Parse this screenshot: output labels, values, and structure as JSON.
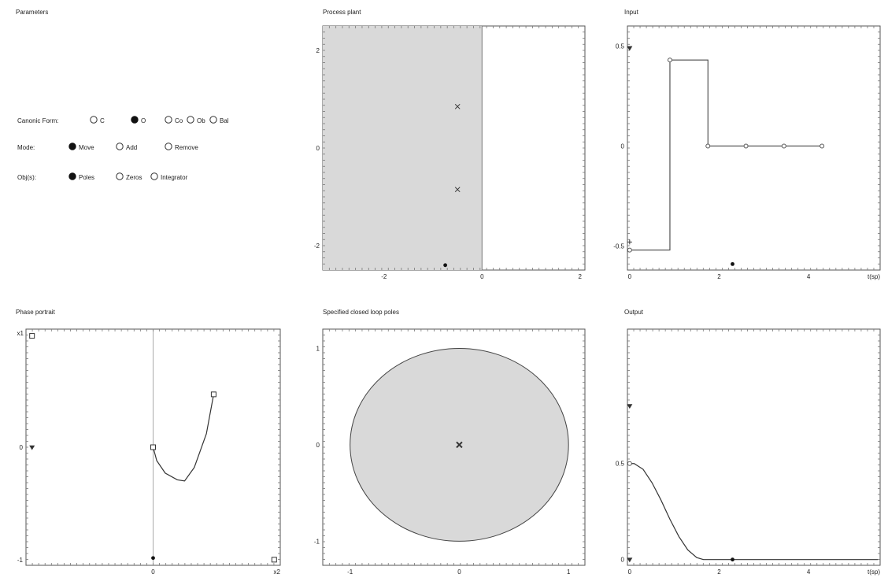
{
  "parameters": {
    "title": "Parameters",
    "canonic_form": {
      "label": "Canonic Form:",
      "options": [
        "C",
        "O",
        "Co",
        "Ob",
        "Bal"
      ],
      "selected": "O"
    },
    "mode": {
      "label": "Mode:",
      "options": [
        "Move",
        "Add",
        "Remove"
      ],
      "selected": "Move"
    },
    "objects": {
      "label": "Obj(s):",
      "options": [
        "Poles",
        "Zeros",
        "Integrator"
      ],
      "selected": "Poles"
    }
  },
  "panels": {
    "process_plant": {
      "title": "Process plant"
    },
    "input": {
      "title": "Input"
    },
    "phase_portrait": {
      "title": "Phase portrait"
    },
    "closed_loop_poles": {
      "title": "Specified closed loop poles"
    },
    "output": {
      "title": "Output"
    }
  },
  "chart_data": [
    {
      "name": "process-plant",
      "type": "scatter",
      "title": "Process plant",
      "xlim": [
        -3.25,
        2.1
      ],
      "ylim": [
        -2.5,
        2.5
      ],
      "xticks": [
        -2,
        0,
        2
      ],
      "yticks": [
        -2,
        0,
        2
      ],
      "shaded_region": {
        "x": [
          -3.25,
          0
        ]
      },
      "poles": [
        {
          "x": -0.5,
          "y": 0.85
        },
        {
          "x": -0.5,
          "y": -0.85
        }
      ],
      "markers": [
        {
          "x": -0.75,
          "y": -2.4
        }
      ]
    },
    {
      "name": "input",
      "type": "line",
      "title": "Input",
      "xlabel": "t(sp)",
      "xlim": [
        -0.05,
        5.6
      ],
      "ylim": [
        -0.62,
        0.6
      ],
      "xticks": [
        0,
        2,
        4
      ],
      "yticks": [
        -0.5,
        0,
        0.5
      ],
      "ytick_labels": [
        "-0.5",
        "0",
        "0.5"
      ],
      "steps": [
        {
          "t": 0,
          "u": -0.52
        },
        {
          "t": 0.9,
          "u": 0.43
        },
        {
          "t": 1.75,
          "u": 0
        },
        {
          "t": 2.6,
          "u": 0
        },
        {
          "t": 3.45,
          "u": 0
        },
        {
          "t": 4.3,
          "u": 0
        }
      ],
      "t_end": 4.3,
      "markers": [
        {
          "x": 2.3,
          "y": -0.59
        }
      ],
      "handles": [
        {
          "x": 0,
          "y": 0.49
        },
        {
          "x": 0,
          "y": -0.48
        }
      ]
    },
    {
      "name": "phase-portrait",
      "type": "line",
      "title": "Phase portrait",
      "xlabel": "x2",
      "ylabel": "x1",
      "xlim": [
        -1.05,
        1.05
      ],
      "ylim": [
        -1.05,
        1.05
      ],
      "xticks": [
        0
      ],
      "yticks": [
        -1,
        0
      ],
      "x": [
        0,
        0.03,
        0.1,
        0.2,
        0.26,
        0.34,
        0.44,
        0.5
      ],
      "y": [
        0,
        -0.12,
        -0.23,
        -0.29,
        -0.3,
        -0.18,
        0.12,
        0.47
      ],
      "start": {
        "x": 0.5,
        "y": 0.47
      },
      "end": {
        "x": 0,
        "y": 0
      },
      "handles": [
        {
          "x": -1.0,
          "y": 0.99
        },
        {
          "x": 1.0,
          "y": -1.0
        }
      ],
      "markers": [
        {
          "x": 0,
          "y": -0.985
        },
        {
          "x": -1.0,
          "y": 0.0
        }
      ]
    },
    {
      "name": "closed-loop-poles",
      "type": "scatter",
      "title": "Specified closed loop poles",
      "xlim": [
        -1.25,
        1.15
      ],
      "ylim": [
        -1.25,
        1.2
      ],
      "xticks": [
        -1,
        0,
        1
      ],
      "yticks": [
        -1,
        0,
        1
      ],
      "region": {
        "center": [
          0,
          0
        ],
        "radius": 1
      },
      "poles": [
        {
          "x": 0,
          "y": 0
        }
      ]
    },
    {
      "name": "output",
      "type": "line",
      "title": "Output",
      "xlabel": "t(sp)",
      "xlim": [
        -0.05,
        5.6
      ],
      "ylim": [
        -0.03,
        1.2
      ],
      "xticks": [
        0,
        2,
        4
      ],
      "yticks": [
        0,
        0.5
      ],
      "ytick_labels": [
        "0",
        "0.5"
      ],
      "t": [
        0,
        0.1,
        0.3,
        0.5,
        0.7,
        0.9,
        1.1,
        1.3,
        1.5,
        1.65,
        2.0,
        3.0,
        4.0,
        5.55
      ],
      "y": [
        0.5,
        0.5,
        0.47,
        0.4,
        0.31,
        0.21,
        0.12,
        0.05,
        0.01,
        0,
        0,
        0,
        0,
        0
      ],
      "markers": [
        {
          "x": 2.3,
          "y": 0
        }
      ],
      "handles": [
        {
          "x": 0,
          "y": 0.8
        },
        {
          "x": 0,
          "y": 0.5
        },
        {
          "x": 0,
          "y": 0
        }
      ]
    }
  ]
}
